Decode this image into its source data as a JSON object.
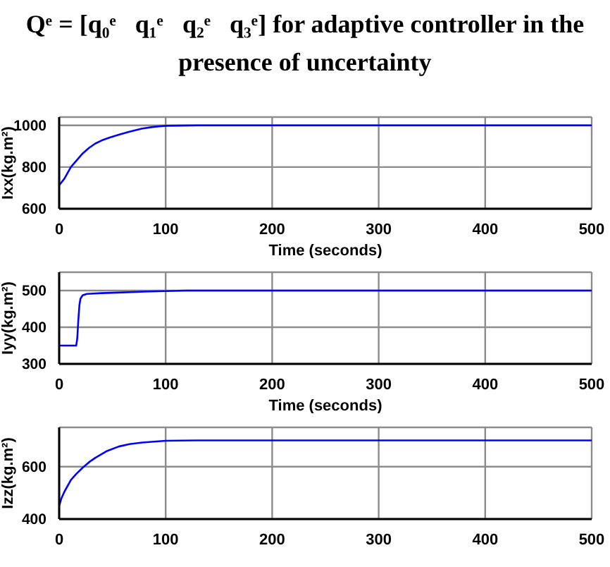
{
  "chart_data": [
    {
      "type": "line",
      "title": "Qᵉ = [q₀ᵉ   q₁ᵉ   q₂ᵉ   q₃ᵉ] for adaptive controller in the presence of uncertainty",
      "xlabel": "Time (seconds)",
      "ylabel": "Ixx(kg.m²)",
      "color": "#0000ff",
      "x": [
        0,
        5,
        11,
        16,
        22,
        28,
        34,
        40,
        48,
        56,
        66,
        78,
        90,
        100,
        130,
        500
      ],
      "values": [
        713,
        745,
        800,
        830,
        865,
        892,
        913,
        928,
        943,
        955,
        970,
        985,
        994,
        998,
        1000,
        1000
      ],
      "xlim": [
        0,
        500
      ],
      "xticks": [
        0,
        100,
        200,
        300,
        400,
        500
      ],
      "ylim": [
        600,
        1040
      ],
      "yticks": [
        600,
        800,
        1000
      ],
      "grid": true
    },
    {
      "type": "line",
      "xlabel": "Time (seconds)",
      "ylabel": "Iyy(kg.m²)",
      "color": "#0000ff",
      "x": [
        0,
        16,
        17,
        18,
        19,
        20,
        22,
        26,
        40,
        60,
        80,
        120,
        500
      ],
      "values": [
        350,
        350,
        370,
        420,
        460,
        478,
        487,
        491,
        493,
        495,
        497,
        500,
        500
      ],
      "xlim": [
        0,
        500
      ],
      "xticks": [
        0,
        100,
        200,
        300,
        400,
        500
      ],
      "ylim": [
        300,
        550
      ],
      "yticks": [
        300,
        400,
        500
      ],
      "grid": true
    },
    {
      "type": "line",
      "ylabel": "Izz(kg.m²)",
      "color": "#0000ff",
      "x": [
        0,
        2,
        5,
        11,
        16,
        22,
        28,
        34,
        45,
        56,
        66,
        78,
        100,
        130,
        500
      ],
      "values": [
        450,
        478,
        505,
        549,
        572,
        596,
        617,
        634,
        660,
        677,
        686,
        692,
        699,
        700,
        700
      ],
      "xlim": [
        0,
        500
      ],
      "xticks": [
        0,
        100,
        200,
        300,
        400,
        500
      ],
      "ylim": [
        400,
        750
      ],
      "yticks": [
        400,
        600
      ],
      "grid": true
    }
  ]
}
